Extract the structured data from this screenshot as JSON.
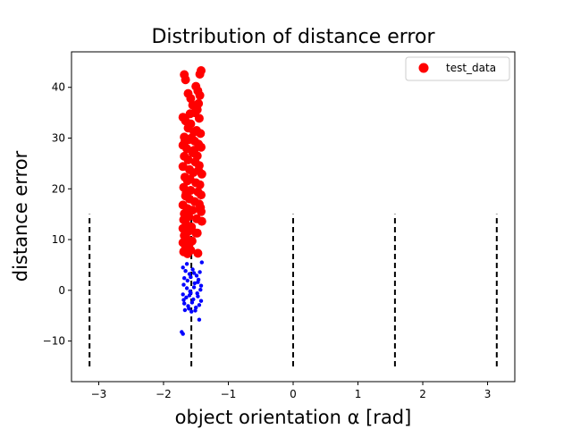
{
  "chart_data": {
    "type": "scatter",
    "title": "Distribution of distance error",
    "xlabel": "object orientation α [rad]",
    "ylabel": "distance error",
    "xlim": [
      -3.42,
      3.42
    ],
    "ylim": [
      -18,
      47
    ],
    "xticks": [
      -3,
      -2,
      -1,
      0,
      1,
      2,
      3
    ],
    "xtick_labels": [
      "−3",
      "−2",
      "−1",
      "0",
      "1",
      "2",
      "3"
    ],
    "yticks": [
      -10,
      0,
      10,
      20,
      30,
      40
    ],
    "ytick_labels": [
      "−10",
      "0",
      "10",
      "20",
      "30",
      "40"
    ],
    "grid": false,
    "legend": {
      "position": "top-right",
      "entries": [
        "test_data"
      ]
    },
    "colors": {
      "test_data": "#ff0000",
      "small_points": "#0000ff",
      "reference_lines": "#000000"
    },
    "reference_lines": {
      "style": "dashed",
      "x": [
        -3.1416,
        -1.5708,
        0,
        1.5708,
        3.1416
      ],
      "y_from": -15,
      "y_to": 15
    },
    "series": [
      {
        "name": "test_data",
        "color": "#ff0000",
        "marker": "large-circle",
        "points": [
          [
            -1.68,
            42.5
          ],
          [
            -1.66,
            41.5
          ],
          [
            -1.42,
            43.3
          ],
          [
            -1.44,
            42.6
          ],
          [
            -1.62,
            38.8
          ],
          [
            -1.58,
            37.8
          ],
          [
            -1.5,
            40.2
          ],
          [
            -1.47,
            39.3
          ],
          [
            -1.44,
            38.4
          ],
          [
            -1.55,
            36.5
          ],
          [
            -1.48,
            35.6
          ],
          [
            -1.52,
            35.0
          ],
          [
            -1.45,
            33.9
          ],
          [
            -1.7,
            34.1
          ],
          [
            -1.66,
            33.4
          ],
          [
            -1.58,
            32.8
          ],
          [
            -1.62,
            32.0
          ],
          [
            -1.49,
            31.5
          ],
          [
            -1.43,
            30.9
          ],
          [
            -1.68,
            30.2
          ],
          [
            -1.57,
            30.0
          ],
          [
            -1.52,
            29.4
          ],
          [
            -1.46,
            28.8
          ],
          [
            -1.42,
            28.2
          ],
          [
            -1.7,
            28.6
          ],
          [
            -1.64,
            27.9
          ],
          [
            -1.55,
            27.1
          ],
          [
            -1.48,
            26.5
          ],
          [
            -1.68,
            26.4
          ],
          [
            -1.62,
            25.7
          ],
          [
            -1.51,
            25.3
          ],
          [
            -1.45,
            24.6
          ],
          [
            -1.7,
            24.4
          ],
          [
            -1.6,
            23.8
          ],
          [
            -1.54,
            23.2
          ],
          [
            -1.41,
            22.9
          ],
          [
            -1.67,
            22.3
          ],
          [
            -1.63,
            21.6
          ],
          [
            -1.5,
            21.2
          ],
          [
            -1.44,
            20.8
          ],
          [
            -1.69,
            20.3
          ],
          [
            -1.58,
            19.7
          ],
          [
            -1.47,
            19.4
          ],
          [
            -1.42,
            18.8
          ],
          [
            -1.66,
            18.6
          ],
          [
            -1.6,
            18.0
          ],
          [
            -1.52,
            17.5
          ],
          [
            -1.45,
            17.0
          ],
          [
            -1.7,
            16.8
          ],
          [
            -1.63,
            16.1
          ],
          [
            -1.55,
            15.8
          ],
          [
            -1.42,
            15.5
          ],
          [
            -1.68,
            15.1
          ],
          [
            -1.61,
            14.5
          ],
          [
            -1.49,
            14.1
          ],
          [
            -1.41,
            13.6
          ],
          [
            -1.69,
            13.9
          ],
          [
            -1.65,
            13.0
          ],
          [
            -1.57,
            12.5
          ],
          [
            -1.7,
            12.2
          ],
          [
            -1.62,
            11.6
          ],
          [
            -1.5,
            11.3
          ],
          [
            -1.68,
            10.8
          ],
          [
            -1.64,
            10.1
          ],
          [
            -1.56,
            9.7
          ],
          [
            -1.7,
            9.4
          ],
          [
            -1.61,
            8.9
          ],
          [
            -1.66,
            8.3
          ],
          [
            -1.58,
            7.9
          ],
          [
            -1.69,
            7.6
          ],
          [
            -1.63,
            7.2
          ],
          [
            -1.47,
            7.3
          ],
          [
            -1.67,
            29.3
          ],
          [
            -1.59,
            34.8
          ],
          [
            -1.46,
            36.8
          ],
          [
            -1.53,
            31.2
          ],
          [
            -1.65,
            19.2
          ],
          [
            -1.59,
            21.9
          ],
          [
            -1.43,
            16.3
          ],
          [
            -1.46,
            23.6
          ],
          [
            -1.53,
            27.6
          ],
          [
            -1.61,
            29.7
          ],
          [
            -1.48,
            11.3
          ]
        ]
      },
      {
        "color": "#0000ff",
        "marker": "small-dot",
        "points": [
          [
            -1.7,
            4.5
          ],
          [
            -1.66,
            3.8
          ],
          [
            -1.6,
            3.2
          ],
          [
            -1.55,
            4.1
          ],
          [
            -1.49,
            2.9
          ],
          [
            -1.44,
            3.6
          ],
          [
            -1.41,
            5.5
          ],
          [
            -1.68,
            2.4
          ],
          [
            -1.63,
            1.9
          ],
          [
            -1.58,
            2.6
          ],
          [
            -1.52,
            1.4
          ],
          [
            -1.46,
            2.1
          ],
          [
            -1.42,
            0.9
          ],
          [
            -1.69,
            1.1
          ],
          [
            -1.64,
            0.4
          ],
          [
            -1.59,
            -0.2
          ],
          [
            -1.53,
            0.6
          ],
          [
            -1.48,
            -0.6
          ],
          [
            -1.43,
            0.1
          ],
          [
            -1.7,
            -0.8
          ],
          [
            -1.65,
            -1.4
          ],
          [
            -1.6,
            -1.0
          ],
          [
            -1.54,
            -1.8
          ],
          [
            -1.47,
            -1.2
          ],
          [
            -1.42,
            -2.1
          ],
          [
            -1.68,
            -2.6
          ],
          [
            -1.62,
            -3.1
          ],
          [
            -1.56,
            -2.4
          ],
          [
            -1.5,
            -3.4
          ],
          [
            -1.45,
            -2.9
          ],
          [
            -1.67,
            -3.9
          ],
          [
            -1.61,
            -3.6
          ],
          [
            -1.57,
            -4.2
          ],
          [
            -1.51,
            -4.0
          ],
          [
            -1.45,
            -5.8
          ],
          [
            -1.72,
            -8.2
          ],
          [
            -1.7,
            -8.6
          ],
          [
            -1.64,
            5.2
          ],
          [
            -1.53,
            3.4
          ],
          [
            -1.58,
            -0.5
          ],
          [
            -1.47,
            1.6
          ],
          [
            -1.69,
            -1.9
          ]
        ]
      }
    ]
  }
}
